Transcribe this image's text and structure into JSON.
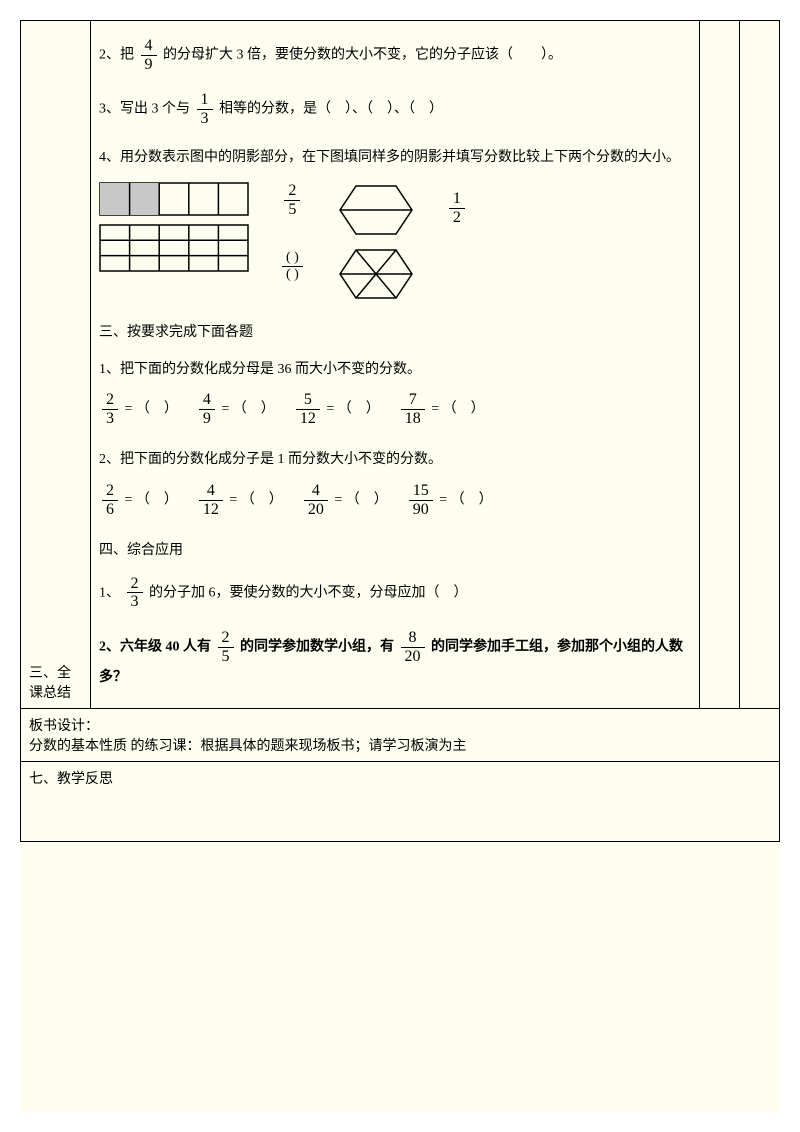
{
  "colors": {
    "bg": "#fdfdf0",
    "border": "#000000",
    "text": "#000000",
    "shade": "#c8c8c8"
  },
  "left": {
    "section3": "三、全课总结"
  },
  "content": {
    "q2_a": "2、把",
    "q2_frac_n": "4",
    "q2_frac_d": "9",
    "q2_b": "的分母扩大 3 倍，要使分数的大小不变，它的分子应该（　　）。",
    "q3_a": "3、写出 3 个与",
    "q3_frac_n": "1",
    "q3_frac_d": "3",
    "q3_b": "相等的分数，是（　）、（　）、（　）",
    "q4_a": "4、用分数表示图中的阴影部分，在下图填同样多的阴影并填写分数比较上下两个分数的大小。",
    "q4_frac1_n": "2",
    "q4_frac1_d": "5",
    "q4_frac2_n": "1",
    "q4_frac2_d": "2",
    "q4_blank_n": "(  )",
    "q4_blank_d": "(  )",
    "s3_title": "三、按要求完成下面各题",
    "s3_q1": "1、把下面的分数化成分母是 36 而大小不变的分数。",
    "s3_q1_items": [
      {
        "n": "2",
        "d": "3"
      },
      {
        "n": "4",
        "d": "9"
      },
      {
        "n": "5",
        "d": "12"
      },
      {
        "n": "7",
        "d": "18"
      }
    ],
    "eq_tail": " = （　）",
    "s3_q2": "2、把下面的分数化成分子是 1 而分数大小不变的分数。",
    "s3_q2_items": [
      {
        "n": "2",
        "d": "6"
      },
      {
        "n": "4",
        "d": "12"
      },
      {
        "n": "4",
        "d": "20"
      },
      {
        "n": "15",
        "d": "90"
      }
    ],
    "s4_title": "四、综合应用",
    "s4_q1_a": "1、",
    "s4_q1_frac_n": "2",
    "s4_q1_frac_d": "3",
    "s4_q1_b": "的分子加 6，要使分数的大小不变，分母应加（　）",
    "s4_q2_a": "2、六年级 40 人有",
    "s4_q2_f1_n": "2",
    "s4_q2_f1_d": "5",
    "s4_q2_b": "的同学参加数学小组，有",
    "s4_q2_f2_n": "8",
    "s4_q2_f2_d": "20",
    "s4_q2_c": "的同学参加手工组，参加那个小组的人数多？"
  },
  "footer": {
    "board_label": "板书设计：",
    "board_text": "分数的基本性质 的练习课：根据具体的题来现场板书；请学习板演为主",
    "reflect": "七、教学反思"
  }
}
